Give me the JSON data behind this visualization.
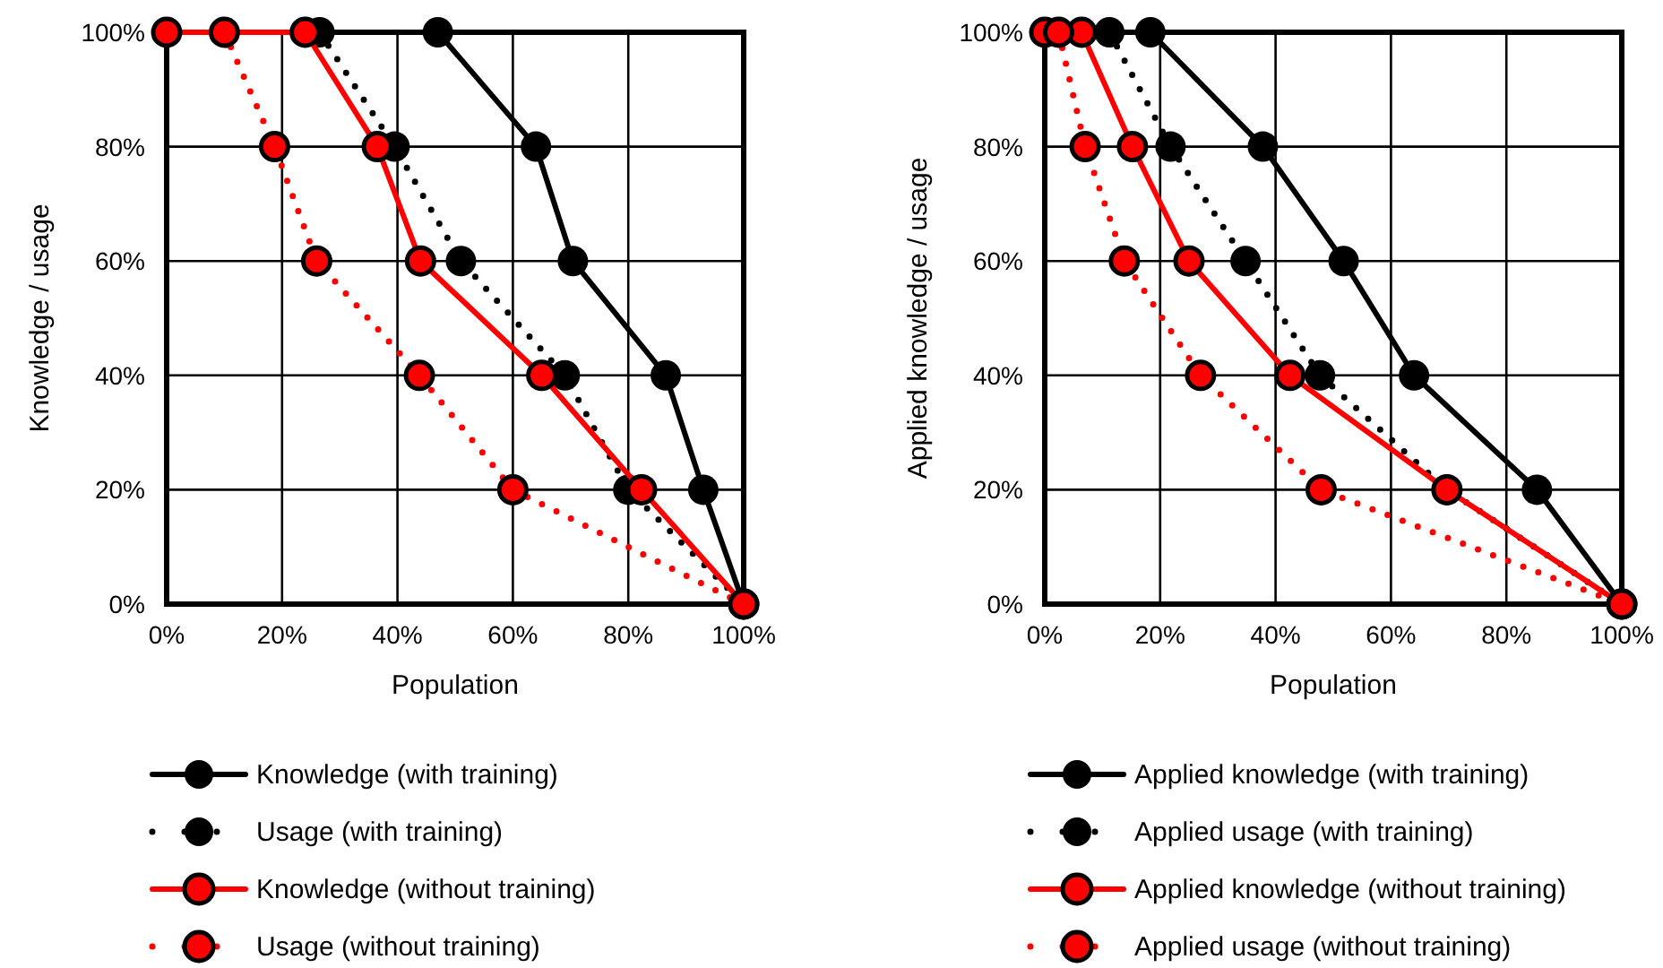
{
  "chart_data": [
    {
      "type": "line",
      "xlabel": "Population",
      "ylabel": "Knowledge / usage",
      "xlim": [
        0,
        100
      ],
      "ylim": [
        0,
        100
      ],
      "xticks": [
        {
          "value": 0,
          "label": "0%"
        },
        {
          "value": 20,
          "label": "20%"
        },
        {
          "value": 40,
          "label": "40%"
        },
        {
          "value": 60,
          "label": "60%"
        },
        {
          "value": 80,
          "label": "80%"
        },
        {
          "value": 100,
          "label": "100%"
        }
      ],
      "yticks": [
        {
          "value": 0,
          "label": "0%"
        },
        {
          "value": 20,
          "label": "20%"
        },
        {
          "value": 40,
          "label": "40%"
        },
        {
          "value": 60,
          "label": "60%"
        },
        {
          "value": 80,
          "label": "80%"
        },
        {
          "value": 100,
          "label": "100%"
        }
      ],
      "grid": true,
      "legend": "bottom",
      "marker": "circle",
      "series": [
        {
          "name": "Knowledge (with training)",
          "color": "#000000",
          "line_style": "solid",
          "x": [
            47,
            64,
            70.4,
            86.5,
            93,
            100
          ],
          "values": [
            100,
            80,
            60,
            40,
            20,
            0
          ]
        },
        {
          "name": "Usage (with training)",
          "color": "#000000",
          "line_style": "dotted",
          "x": [
            26.5,
            39.5,
            51,
            69,
            80,
            100
          ],
          "values": [
            100,
            80,
            60,
            40,
            20,
            0
          ]
        },
        {
          "name": "Knowledge (without training)",
          "color": "#ff0000",
          "line_style": "solid",
          "x": [
            0,
            24,
            36.5,
            44,
            65,
            82.3,
            100
          ],
          "values": [
            100,
            100,
            80,
            60,
            40,
            20,
            0
          ]
        },
        {
          "name": "Usage (without training)",
          "color": "#ff0000",
          "line_style": "dotted",
          "x": [
            10,
            18.7,
            26,
            43.8,
            60,
            100
          ],
          "values": [
            100,
            80,
            60,
            40,
            20,
            0
          ]
        }
      ]
    },
    {
      "type": "line",
      "xlabel": "Population",
      "ylabel": "Applied knowledge / usage",
      "xlim": [
        0,
        100
      ],
      "ylim": [
        0,
        100
      ],
      "xticks": [
        {
          "value": 0,
          "label": "0%"
        },
        {
          "value": 20,
          "label": "20%"
        },
        {
          "value": 40,
          "label": "40%"
        },
        {
          "value": 60,
          "label": "60%"
        },
        {
          "value": 80,
          "label": "80%"
        },
        {
          "value": 100,
          "label": "100%"
        }
      ],
      "yticks": [
        {
          "value": 0,
          "label": "0%"
        },
        {
          "value": 20,
          "label": "20%"
        },
        {
          "value": 40,
          "label": "40%"
        },
        {
          "value": 60,
          "label": "60%"
        },
        {
          "value": 80,
          "label": "80%"
        },
        {
          "value": 100,
          "label": "100%"
        }
      ],
      "grid": true,
      "legend": "bottom",
      "marker": "circle",
      "series": [
        {
          "name": "Applied knowledge (with training)",
          "color": "#000000",
          "line_style": "solid",
          "x": [
            18.3,
            37.8,
            51.8,
            64,
            85.3,
            100
          ],
          "values": [
            100,
            80,
            60,
            40,
            20,
            0
          ]
        },
        {
          "name": "Applied usage (with training)",
          "color": "#000000",
          "line_style": "dotted",
          "x": [
            11.2,
            21.8,
            34.8,
            47.7,
            69.7,
            100
          ],
          "values": [
            100,
            80,
            60,
            40,
            20,
            0
          ]
        },
        {
          "name": "Applied knowledge (without training)",
          "color": "#ff0000",
          "line_style": "solid",
          "x": [
            0,
            6.4,
            15.2,
            25,
            42.5,
            69.7,
            100
          ],
          "values": [
            100,
            100,
            80,
            60,
            40,
            20,
            0
          ]
        },
        {
          "name": "Applied usage (without training)",
          "color": "#ff0000",
          "line_style": "dotted",
          "x": [
            2.4,
            7,
            13.8,
            27,
            47.9,
            100
          ],
          "values": [
            100,
            80,
            60,
            40,
            20,
            0
          ]
        }
      ]
    }
  ]
}
